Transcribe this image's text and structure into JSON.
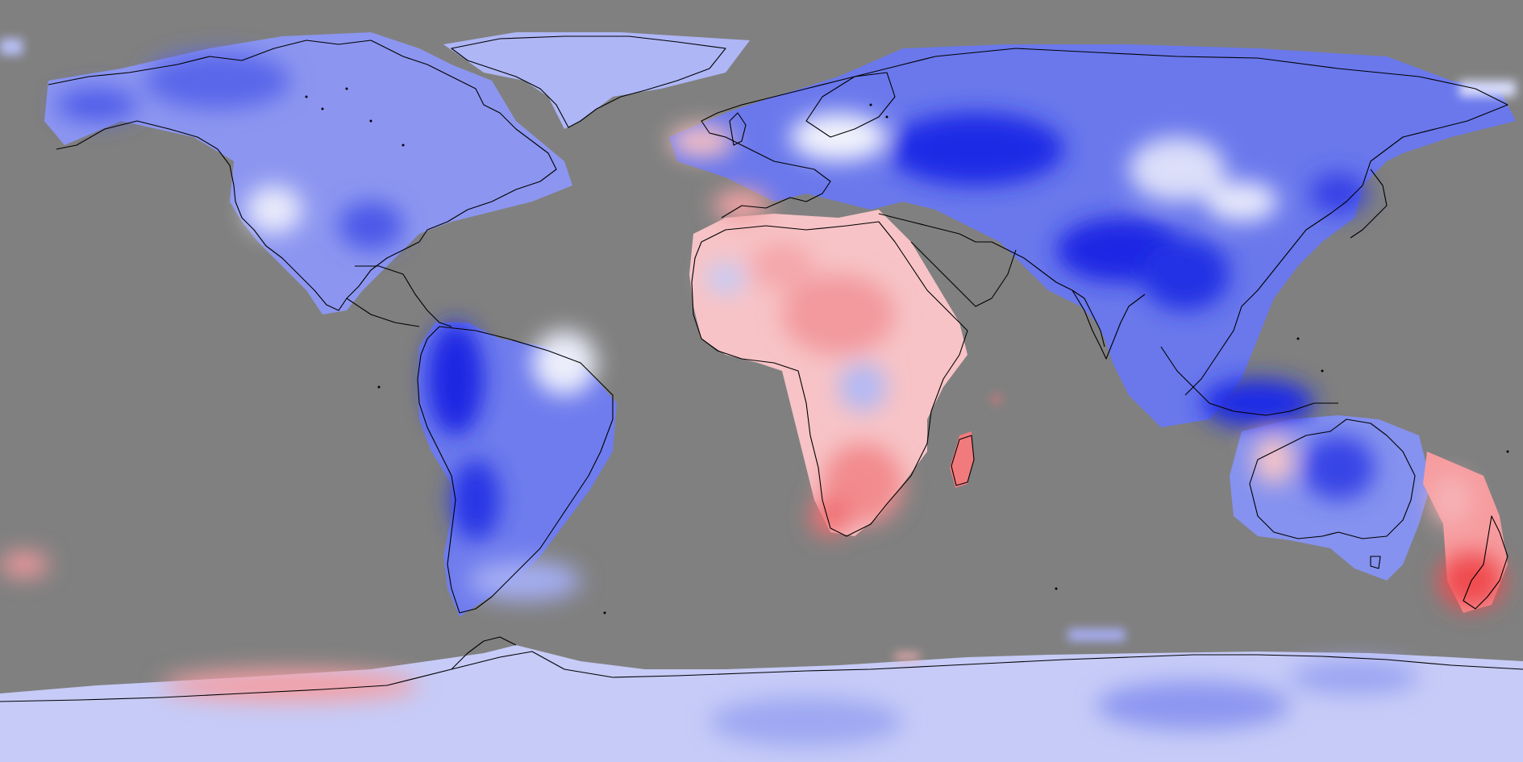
{
  "map": {
    "projection": "equirectangular",
    "extent": "global",
    "background_color": "#808080",
    "coastline_color": "#000000",
    "color_scale": {
      "type": "diverging",
      "negative": "#0a14e6",
      "neutral": "#ffffff",
      "positive": "#ee3a3a"
    },
    "regions": [
      {
        "id": "north-america",
        "tone": "negative-moderate"
      },
      {
        "id": "greenland",
        "tone": "negative-light"
      },
      {
        "id": "south-america",
        "tone": "negative-strong"
      },
      {
        "id": "europe",
        "tone": "mixed"
      },
      {
        "id": "asia",
        "tone": "negative-strong"
      },
      {
        "id": "africa",
        "tone": "positive-light"
      },
      {
        "id": "madagascar",
        "tone": "positive-moderate"
      },
      {
        "id": "australia",
        "tone": "negative-moderate"
      },
      {
        "id": "new-zealand",
        "tone": "positive-moderate"
      },
      {
        "id": "antarctica",
        "tone": "negative-light"
      }
    ]
  }
}
